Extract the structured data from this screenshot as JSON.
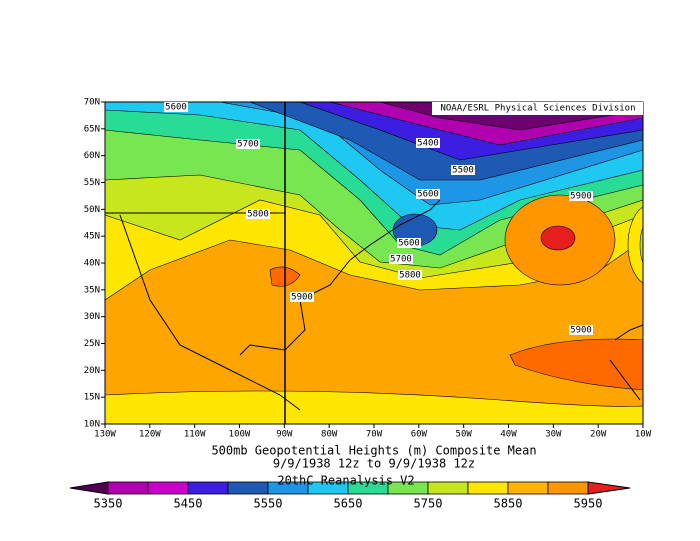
{
  "map": {
    "source": "NOAA/ESRL Physical Sciences Division",
    "x_labels": [
      "130W",
      "120W",
      "110W",
      "100W",
      "90W",
      "80W",
      "70W",
      "60W",
      "50W",
      "40W",
      "30W",
      "20W",
      "10W"
    ],
    "y_labels": [
      "70N",
      "65N",
      "60N",
      "55N",
      "50N",
      "45N",
      "40N",
      "35N",
      "30N",
      "25N",
      "20N",
      "15N",
      "10N"
    ],
    "contour_labels": [
      "5600",
      "5700",
      "5400",
      "5500",
      "5600",
      "5800",
      "5900",
      "5600",
      "5700",
      "5800",
      "5900",
      "5900"
    ]
  },
  "caption": {
    "title": "500mb Geopotential Heights (m)   Composite Mean",
    "dates": "9/9/1938 12z  to 9/9/1938 12z",
    "dataset": "20thC Reanalysis V2"
  },
  "colorbar": {
    "labels": [
      "5350",
      "5450",
      "5550",
      "5650",
      "5750",
      "5850",
      "5950"
    ]
  }
}
